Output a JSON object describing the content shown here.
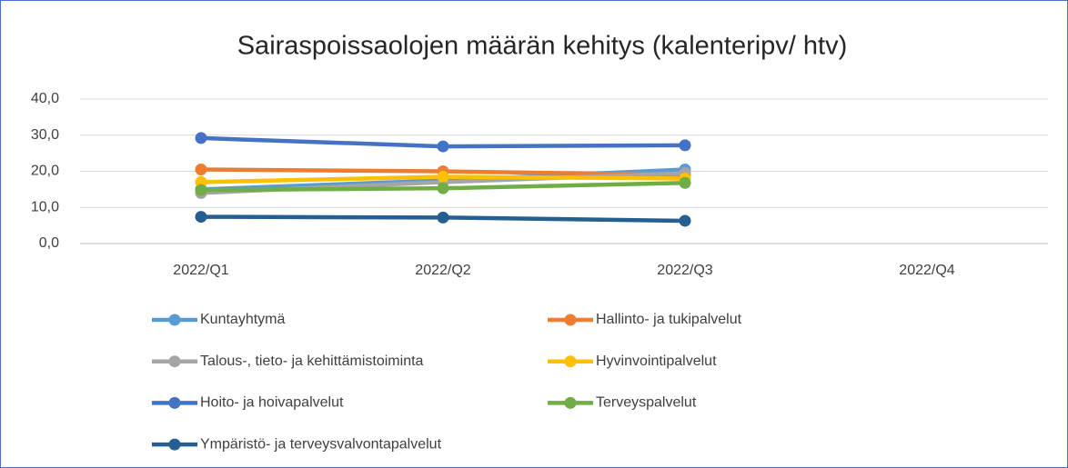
{
  "chart_data": {
    "type": "line",
    "title": "Sairaspoissaolojen määrän kehitys (kalenteripv/ htv)",
    "categories": [
      "2022/Q1",
      "2022/Q2",
      "2022/Q3",
      "2022/Q4"
    ],
    "series": [
      {
        "name": "Kuntayhtymä",
        "color": "#5b9bd5",
        "values": [
          15.0,
          17.5,
          20.5,
          null
        ]
      },
      {
        "name": "Hallinto- ja tukipalvelut",
        "color": "#ed7d31",
        "values": [
          20.5,
          20.0,
          19.0,
          null
        ]
      },
      {
        "name": "Talous-, tieto- ja kehittämistoiminta",
        "color": "#a5a5a5",
        "values": [
          14.0,
          17.0,
          19.5,
          null
        ]
      },
      {
        "name": "Hyvinvointipalvelut",
        "color": "#ffc000",
        "values": [
          17.0,
          18.5,
          18.0,
          null
        ]
      },
      {
        "name": "Hoito- ja hoivapalvelut",
        "color": "#4472c4",
        "values": [
          29.2,
          26.9,
          27.2,
          null
        ]
      },
      {
        "name": "Terveyspalvelut",
        "color": "#70ad47",
        "values": [
          14.8,
          15.3,
          16.8,
          null
        ]
      },
      {
        "name": "Ympäristö- ja terveysvalvontapalvelut",
        "color": "#255e91",
        "values": [
          7.4,
          7.2,
          6.3,
          null
        ]
      }
    ],
    "ylim": [
      0,
      40
    ],
    "yticks": [
      {
        "value": 0,
        "label": "0,0"
      },
      {
        "value": 10,
        "label": "10,0"
      },
      {
        "value": 20,
        "label": "20,0"
      },
      {
        "value": 30,
        "label": "30,0"
      },
      {
        "value": 40,
        "label": "40,0"
      }
    ],
    "grid": true,
    "legend": "bottom"
  }
}
